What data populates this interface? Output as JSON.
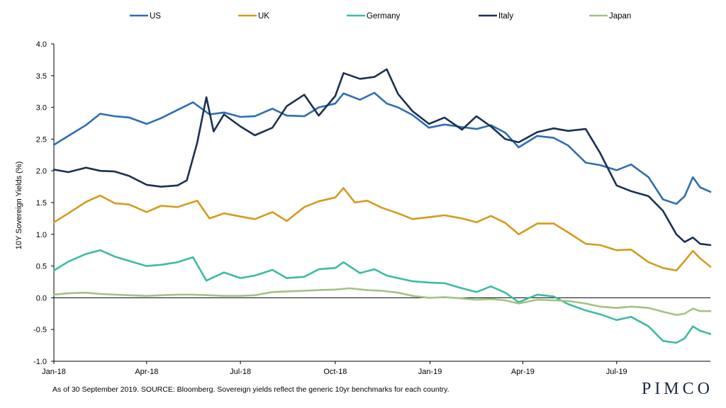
{
  "chart_data": {
    "type": "line",
    "ylabel": "10Y Sovereign Yields (%)",
    "ylim": [
      -1.0,
      4.0
    ],
    "yticks": [
      "4.0",
      "3.5",
      "3.0",
      "2.5",
      "2.0",
      "1.5",
      "1.0",
      "0.5",
      "0.0",
      "-0.5",
      "-1.0"
    ],
    "xlim": [
      "2018-01-01",
      "2019-09-30"
    ],
    "xticks": [
      {
        "date": "2018-01-01",
        "label": "Jan-18"
      },
      {
        "date": "2018-04-01",
        "label": "Apr-18"
      },
      {
        "date": "2018-07-01",
        "label": "Jul-18"
      },
      {
        "date": "2018-10-01",
        "label": "Oct-18"
      },
      {
        "date": "2019-01-01",
        "label": "Jan-19"
      },
      {
        "date": "2019-04-01",
        "label": "Apr-19"
      },
      {
        "date": "2019-07-01",
        "label": "Jul-19"
      }
    ],
    "legend_position": "top",
    "grid": false,
    "zero_line": true,
    "series": [
      {
        "name": "US",
        "color": "#2e6db4",
        "points": [
          [
            "2018-01-01",
            2.41
          ],
          [
            "2018-01-15",
            2.55
          ],
          [
            "2018-02-01",
            2.72
          ],
          [
            "2018-02-15",
            2.9
          ],
          [
            "2018-03-01",
            2.86
          ],
          [
            "2018-03-15",
            2.84
          ],
          [
            "2018-04-01",
            2.74
          ],
          [
            "2018-04-15",
            2.83
          ],
          [
            "2018-05-01",
            2.96
          ],
          [
            "2018-05-16",
            3.08
          ],
          [
            "2018-06-01",
            2.89
          ],
          [
            "2018-06-15",
            2.92
          ],
          [
            "2018-07-01",
            2.85
          ],
          [
            "2018-07-15",
            2.86
          ],
          [
            "2018-08-01",
            2.98
          ],
          [
            "2018-08-15",
            2.87
          ],
          [
            "2018-09-01",
            2.86
          ],
          [
            "2018-09-15",
            3.0
          ],
          [
            "2018-10-01",
            3.06
          ],
          [
            "2018-10-09",
            3.22
          ],
          [
            "2018-10-25",
            3.12
          ],
          [
            "2018-11-08",
            3.23
          ],
          [
            "2018-11-20",
            3.06
          ],
          [
            "2018-12-01",
            3.0
          ],
          [
            "2018-12-15",
            2.88
          ],
          [
            "2018-12-31",
            2.68
          ],
          [
            "2019-01-15",
            2.73
          ],
          [
            "2019-02-01",
            2.69
          ],
          [
            "2019-02-15",
            2.66
          ],
          [
            "2019-03-01",
            2.72
          ],
          [
            "2019-03-15",
            2.6
          ],
          [
            "2019-03-28",
            2.37
          ],
          [
            "2019-04-15",
            2.55
          ],
          [
            "2019-05-01",
            2.52
          ],
          [
            "2019-05-15",
            2.4
          ],
          [
            "2019-06-01",
            2.13
          ],
          [
            "2019-06-15",
            2.09
          ],
          [
            "2019-07-01",
            2.01
          ],
          [
            "2019-07-15",
            2.1
          ],
          [
            "2019-08-01",
            1.9
          ],
          [
            "2019-08-15",
            1.55
          ],
          [
            "2019-08-28",
            1.48
          ],
          [
            "2019-09-05",
            1.6
          ],
          [
            "2019-09-13",
            1.9
          ],
          [
            "2019-09-20",
            1.74
          ],
          [
            "2019-09-30",
            1.67
          ]
        ]
      },
      {
        "name": "UK",
        "color": "#d69a1e",
        "points": [
          [
            "2018-01-01",
            1.19
          ],
          [
            "2018-01-15",
            1.33
          ],
          [
            "2018-02-01",
            1.51
          ],
          [
            "2018-02-15",
            1.61
          ],
          [
            "2018-03-01",
            1.49
          ],
          [
            "2018-03-15",
            1.47
          ],
          [
            "2018-04-01",
            1.35
          ],
          [
            "2018-04-15",
            1.45
          ],
          [
            "2018-05-01",
            1.43
          ],
          [
            "2018-05-20",
            1.53
          ],
          [
            "2018-06-01",
            1.25
          ],
          [
            "2018-06-15",
            1.33
          ],
          [
            "2018-07-01",
            1.28
          ],
          [
            "2018-07-15",
            1.24
          ],
          [
            "2018-08-01",
            1.35
          ],
          [
            "2018-08-15",
            1.21
          ],
          [
            "2018-09-01",
            1.43
          ],
          [
            "2018-09-15",
            1.52
          ],
          [
            "2018-10-01",
            1.58
          ],
          [
            "2018-10-09",
            1.73
          ],
          [
            "2018-10-20",
            1.5
          ],
          [
            "2018-11-01",
            1.53
          ],
          [
            "2018-11-15",
            1.42
          ],
          [
            "2018-12-01",
            1.33
          ],
          [
            "2018-12-15",
            1.24
          ],
          [
            "2018-12-31",
            1.27
          ],
          [
            "2019-01-15",
            1.3
          ],
          [
            "2019-02-01",
            1.25
          ],
          [
            "2019-02-15",
            1.19
          ],
          [
            "2019-03-01",
            1.29
          ],
          [
            "2019-03-15",
            1.18
          ],
          [
            "2019-03-28",
            1.0
          ],
          [
            "2019-04-15",
            1.17
          ],
          [
            "2019-05-01",
            1.17
          ],
          [
            "2019-05-15",
            1.03
          ],
          [
            "2019-06-01",
            0.85
          ],
          [
            "2019-06-15",
            0.83
          ],
          [
            "2019-07-01",
            0.75
          ],
          [
            "2019-07-15",
            0.76
          ],
          [
            "2019-08-01",
            0.56
          ],
          [
            "2019-08-15",
            0.47
          ],
          [
            "2019-08-28",
            0.43
          ],
          [
            "2019-09-05",
            0.58
          ],
          [
            "2019-09-13",
            0.74
          ],
          [
            "2019-09-20",
            0.62
          ],
          [
            "2019-09-30",
            0.49
          ]
        ]
      },
      {
        "name": "Germany",
        "color": "#3dbba3",
        "points": [
          [
            "2018-01-01",
            0.43
          ],
          [
            "2018-01-15",
            0.57
          ],
          [
            "2018-02-01",
            0.69
          ],
          [
            "2018-02-15",
            0.75
          ],
          [
            "2018-03-01",
            0.65
          ],
          [
            "2018-03-15",
            0.58
          ],
          [
            "2018-04-01",
            0.5
          ],
          [
            "2018-04-15",
            0.52
          ],
          [
            "2018-05-01",
            0.56
          ],
          [
            "2018-05-16",
            0.64
          ],
          [
            "2018-05-29",
            0.27
          ],
          [
            "2018-06-15",
            0.4
          ],
          [
            "2018-07-01",
            0.31
          ],
          [
            "2018-07-15",
            0.35
          ],
          [
            "2018-08-01",
            0.44
          ],
          [
            "2018-08-15",
            0.31
          ],
          [
            "2018-09-01",
            0.33
          ],
          [
            "2018-09-15",
            0.45
          ],
          [
            "2018-10-01",
            0.47
          ],
          [
            "2018-10-09",
            0.56
          ],
          [
            "2018-10-25",
            0.39
          ],
          [
            "2018-11-08",
            0.45
          ],
          [
            "2018-11-20",
            0.35
          ],
          [
            "2018-12-01",
            0.31
          ],
          [
            "2018-12-15",
            0.26
          ],
          [
            "2018-12-31",
            0.24
          ],
          [
            "2019-01-15",
            0.23
          ],
          [
            "2019-02-01",
            0.15
          ],
          [
            "2019-02-15",
            0.09
          ],
          [
            "2019-03-01",
            0.18
          ],
          [
            "2019-03-15",
            0.08
          ],
          [
            "2019-03-28",
            -0.07
          ],
          [
            "2019-04-15",
            0.05
          ],
          [
            "2019-05-01",
            0.02
          ],
          [
            "2019-05-15",
            -0.1
          ],
          [
            "2019-06-01",
            -0.2
          ],
          [
            "2019-06-15",
            -0.26
          ],
          [
            "2019-07-01",
            -0.35
          ],
          [
            "2019-07-15",
            -0.3
          ],
          [
            "2019-08-01",
            -0.45
          ],
          [
            "2019-08-15",
            -0.68
          ],
          [
            "2019-08-28",
            -0.71
          ],
          [
            "2019-09-05",
            -0.64
          ],
          [
            "2019-09-13",
            -0.45
          ],
          [
            "2019-09-20",
            -0.52
          ],
          [
            "2019-09-30",
            -0.57
          ]
        ]
      },
      {
        "name": "Italy",
        "color": "#1b3052",
        "points": [
          [
            "2018-01-01",
            2.02
          ],
          [
            "2018-01-15",
            1.98
          ],
          [
            "2018-02-01",
            2.05
          ],
          [
            "2018-02-15",
            2.0
          ],
          [
            "2018-03-01",
            1.99
          ],
          [
            "2018-03-15",
            1.92
          ],
          [
            "2018-04-01",
            1.78
          ],
          [
            "2018-04-15",
            1.75
          ],
          [
            "2018-05-01",
            1.77
          ],
          [
            "2018-05-10",
            1.85
          ],
          [
            "2018-05-20",
            2.44
          ],
          [
            "2018-05-29",
            3.16
          ],
          [
            "2018-06-05",
            2.62
          ],
          [
            "2018-06-15",
            2.89
          ],
          [
            "2018-07-01",
            2.7
          ],
          [
            "2018-07-15",
            2.56
          ],
          [
            "2018-08-01",
            2.68
          ],
          [
            "2018-08-15",
            3.02
          ],
          [
            "2018-09-01",
            3.2
          ],
          [
            "2018-09-15",
            2.87
          ],
          [
            "2018-10-01",
            3.18
          ],
          [
            "2018-10-09",
            3.54
          ],
          [
            "2018-10-25",
            3.45
          ],
          [
            "2018-11-08",
            3.48
          ],
          [
            "2018-11-20",
            3.6
          ],
          [
            "2018-12-01",
            3.21
          ],
          [
            "2018-12-15",
            2.94
          ],
          [
            "2018-12-31",
            2.74
          ],
          [
            "2019-01-15",
            2.84
          ],
          [
            "2019-02-01",
            2.65
          ],
          [
            "2019-02-15",
            2.86
          ],
          [
            "2019-03-01",
            2.7
          ],
          [
            "2019-03-15",
            2.5
          ],
          [
            "2019-03-28",
            2.45
          ],
          [
            "2019-04-15",
            2.61
          ],
          [
            "2019-05-01",
            2.67
          ],
          [
            "2019-05-15",
            2.63
          ],
          [
            "2019-06-01",
            2.66
          ],
          [
            "2019-06-15",
            2.28
          ],
          [
            "2019-07-01",
            1.77
          ],
          [
            "2019-07-15",
            1.68
          ],
          [
            "2019-08-01",
            1.6
          ],
          [
            "2019-08-15",
            1.37
          ],
          [
            "2019-08-28",
            1.0
          ],
          [
            "2019-09-05",
            0.88
          ],
          [
            "2019-09-13",
            0.95
          ],
          [
            "2019-09-20",
            0.85
          ],
          [
            "2019-09-30",
            0.83
          ]
        ]
      },
      {
        "name": "Japan",
        "color": "#a3c283",
        "points": [
          [
            "2018-01-01",
            0.05
          ],
          [
            "2018-01-15",
            0.07
          ],
          [
            "2018-02-01",
            0.08
          ],
          [
            "2018-02-15",
            0.06
          ],
          [
            "2018-03-01",
            0.05
          ],
          [
            "2018-03-15",
            0.04
          ],
          [
            "2018-04-01",
            0.03
          ],
          [
            "2018-04-15",
            0.04
          ],
          [
            "2018-05-01",
            0.05
          ],
          [
            "2018-05-15",
            0.05
          ],
          [
            "2018-06-01",
            0.04
          ],
          [
            "2018-06-15",
            0.03
          ],
          [
            "2018-07-01",
            0.03
          ],
          [
            "2018-07-15",
            0.04
          ],
          [
            "2018-08-01",
            0.09
          ],
          [
            "2018-08-15",
            0.1
          ],
          [
            "2018-09-01",
            0.11
          ],
          [
            "2018-09-15",
            0.12
          ],
          [
            "2018-10-01",
            0.13
          ],
          [
            "2018-10-15",
            0.15
          ],
          [
            "2018-11-01",
            0.12
          ],
          [
            "2018-11-15",
            0.11
          ],
          [
            "2018-12-01",
            0.08
          ],
          [
            "2018-12-15",
            0.03
          ],
          [
            "2018-12-31",
            0.0
          ],
          [
            "2019-01-15",
            0.01
          ],
          [
            "2019-02-01",
            -0.01
          ],
          [
            "2019-02-15",
            -0.03
          ],
          [
            "2019-03-01",
            -0.02
          ],
          [
            "2019-03-15",
            -0.04
          ],
          [
            "2019-03-28",
            -0.09
          ],
          [
            "2019-04-15",
            -0.03
          ],
          [
            "2019-05-01",
            -0.04
          ],
          [
            "2019-05-15",
            -0.05
          ],
          [
            "2019-06-01",
            -0.09
          ],
          [
            "2019-06-15",
            -0.14
          ],
          [
            "2019-07-01",
            -0.16
          ],
          [
            "2019-07-15",
            -0.14
          ],
          [
            "2019-08-01",
            -0.16
          ],
          [
            "2019-08-15",
            -0.22
          ],
          [
            "2019-08-28",
            -0.27
          ],
          [
            "2019-09-05",
            -0.25
          ],
          [
            "2019-09-13",
            -0.17
          ],
          [
            "2019-09-20",
            -0.21
          ],
          [
            "2019-09-30",
            -0.21
          ]
        ]
      }
    ]
  },
  "footnote": "As of 30 September 2019. SOURCE: Bloomberg.  Sovereign yields reflect the generic 10yr benchmarks for each country.",
  "logo_text": "PIMCO"
}
